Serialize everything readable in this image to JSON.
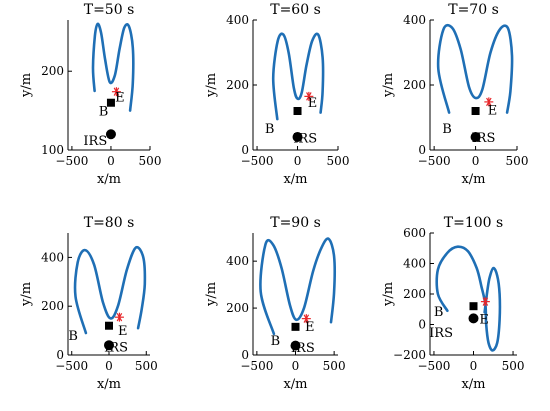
{
  "figure": {
    "colors": {
      "trajectory": "#1f6fb5",
      "eve": "#e8262a",
      "marker": "#000000",
      "axes": "#000000"
    }
  },
  "chart_data": [
    {
      "type": "line",
      "title": "T=50 s",
      "xlabel": "x/m",
      "ylabel": "y/m",
      "xlim": [
        -550,
        500
      ],
      "ylim": [
        100,
        265
      ],
      "xticks": [
        -500,
        0,
        500
      ],
      "yticks": [
        100,
        200
      ],
      "tick_labels_x": [
        "−500",
        "0",
        "500"
      ],
      "tick_labels_y": [
        "100",
        "200"
      ],
      "series": [
        {
          "values": [
            [
              -210,
              175
            ],
            [
              -230,
              205
            ],
            [
              -205,
              245
            ],
            [
              -170,
              260
            ],
            [
              -125,
              248
            ],
            [
              -75,
              215
            ],
            [
              -15,
              186
            ],
            [
              50,
              195
            ],
            [
              110,
              228
            ],
            [
              170,
              255
            ],
            [
              230,
              257
            ],
            [
              280,
              230
            ],
            [
              280,
              185
            ],
            [
              245,
              150
            ]
          ]
        }
      ],
      "points": {
        "B": {
          "label": "B",
          "x": 0,
          "y": 160,
          "lx": -95,
          "ly": 150
        },
        "IRS": {
          "label": "IRS",
          "x": 0,
          "y": 120,
          "lx": -200,
          "ly": 113
        },
        "E": {
          "label": "E",
          "x": 70,
          "y": 174,
          "lx": 115,
          "ly": 168
        }
      }
    },
    {
      "type": "line",
      "title": "T=60 s",
      "xlabel": "x/m",
      "ylabel": "y/m",
      "xlim": [
        -550,
        500
      ],
      "ylim": [
        0,
        400
      ],
      "xticks": [
        -500,
        0,
        500
      ],
      "yticks": [
        0,
        200,
        400
      ],
      "tick_labels_x": [
        "−500",
        "0",
        "500"
      ],
      "tick_labels_y": [
        "0",
        "200",
        "400"
      ],
      "series": [
        {
          "values": [
            [
              -250,
              95
            ],
            [
              -300,
              220
            ],
            [
              -245,
              335
            ],
            [
              -175,
              355
            ],
            [
              -110,
              300
            ],
            [
              -45,
              190
            ],
            [
              0,
              158
            ],
            [
              50,
              175
            ],
            [
              110,
              260
            ],
            [
              180,
              335
            ],
            [
              255,
              355
            ],
            [
              310,
              285
            ],
            [
              310,
              180
            ],
            [
              285,
              115
            ]
          ]
        }
      ],
      "points": {
        "B": {
          "label": "B",
          "x": 0,
          "y": 120,
          "lx": -345,
          "ly": 68
        },
        "IRS": {
          "label": "IRS",
          "x": 0,
          "y": 40,
          "lx": 95,
          "ly": 38
        },
        "E": {
          "label": "E",
          "x": 140,
          "y": 165,
          "lx": 185,
          "ly": 148
        }
      }
    },
    {
      "type": "line",
      "title": "T=70 s",
      "xlabel": "x/m",
      "ylabel": "y/m",
      "xlim": [
        -550,
        500
      ],
      "ylim": [
        0,
        400
      ],
      "xticks": [
        -500,
        0,
        500
      ],
      "yticks": [
        0,
        200,
        400
      ],
      "tick_labels_x": [
        "−500",
        "0",
        "500"
      ],
      "tick_labels_y": [
        "0",
        "200",
        "400"
      ],
      "series": [
        {
          "values": [
            [
              -320,
              115
            ],
            [
              -450,
              250
            ],
            [
              -390,
              370
            ],
            [
              -280,
              375
            ],
            [
              -180,
              310
            ],
            [
              -80,
              195
            ],
            [
              0,
              160
            ],
            [
              80,
              185
            ],
            [
              180,
              300
            ],
            [
              290,
              370
            ],
            [
              390,
              375
            ],
            [
              440,
              290
            ],
            [
              420,
              180
            ],
            [
              380,
              115
            ]
          ]
        }
      ],
      "points": {
        "B": {
          "label": "B",
          "x": 0,
          "y": 120,
          "lx": -345,
          "ly": 68
        },
        "IRS": {
          "label": "IRS",
          "x": 0,
          "y": 40,
          "lx": 95,
          "ly": 40
        },
        "E": {
          "label": "E",
          "x": 160,
          "y": 148,
          "lx": 205,
          "ly": 125
        }
      }
    },
    {
      "type": "line",
      "title": "T=80 s",
      "xlabel": "x/m",
      "ylabel": "y/m",
      "xlim": [
        -550,
        550
      ],
      "ylim": [
        0,
        500
      ],
      "xticks": [
        -500,
        0,
        500
      ],
      "yticks": [
        0,
        200,
        400
      ],
      "tick_labels_x": [
        "−500",
        "0",
        "500"
      ],
      "tick_labels_y": [
        "0",
        "200",
        "400"
      ],
      "series": [
        {
          "values": [
            [
              -310,
              90
            ],
            [
              -450,
              240
            ],
            [
              -420,
              380
            ],
            [
              -320,
              430
            ],
            [
              -200,
              370
            ],
            [
              -80,
              215
            ],
            [
              20,
              150
            ],
            [
              120,
              200
            ],
            [
              240,
              350
            ],
            [
              360,
              440
            ],
            [
              460,
              400
            ],
            [
              480,
              290
            ],
            [
              440,
              190
            ],
            [
              390,
              110
            ]
          ]
        }
      ],
      "points": {
        "B": {
          "label": "B",
          "x": 0,
          "y": 120,
          "lx": -480,
          "ly": 82
        },
        "IRS": {
          "label": "IRS",
          "x": 0,
          "y": 40,
          "lx": 95,
          "ly": 35
        },
        "E": {
          "label": "E",
          "x": 140,
          "y": 155,
          "lx": 185,
          "ly": 103
        }
      }
    },
    {
      "type": "line",
      "title": "T=90 s",
      "xlabel": "x/m",
      "ylabel": "y/m",
      "xlim": [
        -550,
        550
      ],
      "ylim": [
        0,
        520
      ],
      "xticks": [
        -500,
        0,
        500
      ],
      "yticks": [
        0,
        200,
        400
      ],
      "tick_labels_x": [
        "−500",
        "0",
        "500"
      ],
      "tick_labels_y": [
        "0",
        "200",
        "400"
      ],
      "series": [
        {
          "values": [
            [
              -280,
              90
            ],
            [
              -450,
              270
            ],
            [
              -390,
              470
            ],
            [
              -290,
              470
            ],
            [
              -180,
              370
            ],
            [
              -70,
              210
            ],
            [
              10,
              150
            ],
            [
              110,
              200
            ],
            [
              230,
              360
            ],
            [
              340,
              460
            ],
            [
              430,
              495
            ],
            [
              500,
              420
            ],
            [
              500,
              270
            ],
            [
              460,
              140
            ]
          ]
        }
      ],
      "points": {
        "B": {
          "label": "B",
          "x": 0,
          "y": 120,
          "lx": -260,
          "ly": 65
        },
        "IRS": {
          "label": "IRS",
          "x": 0,
          "y": 40,
          "lx": 95,
          "ly": 35
        },
        "E": {
          "label": "E",
          "x": 140,
          "y": 155,
          "lx": 185,
          "ly": 123
        }
      }
    },
    {
      "type": "line",
      "title": "T=100 s",
      "xlabel": "x/m",
      "ylabel": "y/m",
      "xlim": [
        -550,
        550
      ],
      "ylim": [
        -200,
        600
      ],
      "xticks": [
        -500,
        0,
        500
      ],
      "yticks": [
        -200,
        0,
        200,
        400,
        600
      ],
      "tick_labels_x": [
        "−500",
        "0",
        "500"
      ],
      "tick_labels_y": [
        "−200",
        "0",
        "200",
        "400",
        "600"
      ],
      "series": [
        {
          "values": [
            [
              -330,
              90
            ],
            [
              -450,
              200
            ],
            [
              -450,
              360
            ],
            [
              -330,
              470
            ],
            [
              -200,
              510
            ],
            [
              -70,
              480
            ],
            [
              40,
              370
            ],
            [
              100,
              250
            ],
            [
              150,
              130
            ],
            [
              160,
              0
            ],
            [
              190,
              -120
            ],
            [
              240,
              -170
            ],
            [
              300,
              -120
            ],
            [
              330,
              30
            ],
            [
              330,
              200
            ],
            [
              300,
              320
            ],
            [
              250,
              370
            ],
            [
              200,
              300
            ],
            [
              170,
              200
            ],
            [
              140,
              80
            ]
          ]
        }
      ],
      "points": {
        "B": {
          "label": "B",
          "x": 0,
          "y": 120,
          "lx": -440,
          "ly": 90
        },
        "IRS": {
          "label": "IRS",
          "x": 0,
          "y": 40,
          "lx": -410,
          "ly": -50
        },
        "E": {
          "label": "E",
          "x": 150,
          "y": 150,
          "lx": 135,
          "ly": 40
        }
      }
    }
  ]
}
